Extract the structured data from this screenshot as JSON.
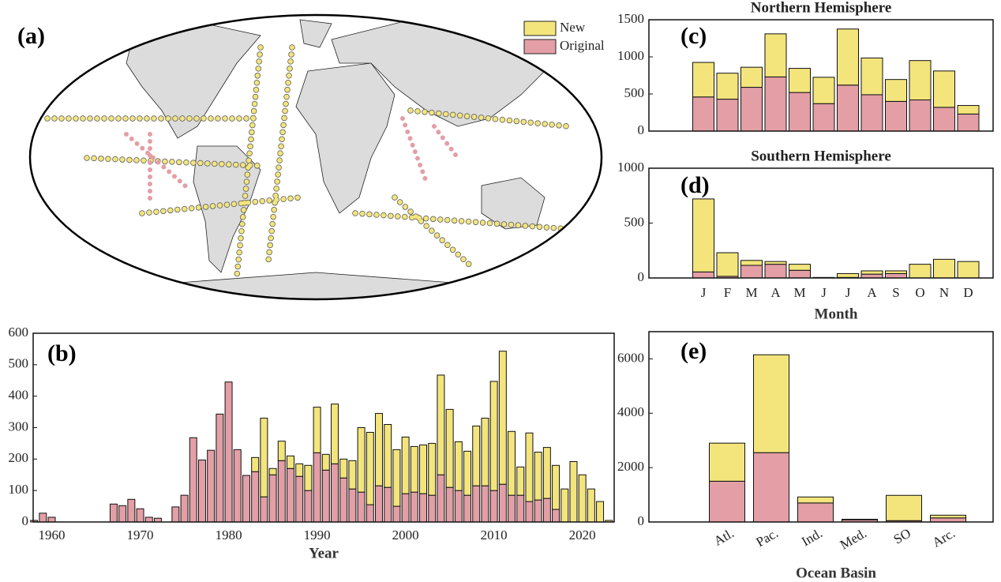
{
  "chart_data": [
    {
      "type": "map",
      "panel_label": "(a)",
      "series": [
        {
          "name": "New",
          "color": "#f3e57c"
        },
        {
          "name": "Original",
          "color": "#e39ea6"
        }
      ]
    },
    {
      "type": "bar",
      "stacked": true,
      "panel_label": "(b)",
      "x_label": "Year",
      "x": [
        1958,
        1959,
        1960,
        1961,
        1962,
        1963,
        1964,
        1965,
        1966,
        1967,
        1968,
        1969,
        1970,
        1971,
        1972,
        1973,
        1974,
        1975,
        1976,
        1977,
        1978,
        1979,
        1980,
        1981,
        1982,
        1983,
        1984,
        1985,
        1986,
        1987,
        1988,
        1989,
        1990,
        1991,
        1992,
        1993,
        1994,
        1995,
        1996,
        1997,
        1998,
        1999,
        2000,
        2001,
        2002,
        2003,
        2004,
        2005,
        2006,
        2007,
        2008,
        2009,
        2010,
        2011,
        2012,
        2013,
        2014,
        2015,
        2016,
        2017,
        2018,
        2019,
        2020,
        2021,
        2022,
        2023
      ],
      "xlim": [
        1957.9,
        2023.6
      ],
      "xticks": [
        1960,
        1970,
        1980,
        1990,
        2000,
        2010,
        2020
      ],
      "ylim": [
        0,
        600
      ],
      "yticks": [
        0,
        100,
        200,
        300,
        400,
        500,
        600
      ],
      "series": [
        {
          "color": "#e39ea6",
          "values": [
            5,
            28,
            15,
            0,
            0,
            0,
            0,
            0,
            0,
            57,
            52,
            72,
            42,
            15,
            12,
            0,
            48,
            85,
            268,
            197,
            228,
            343,
            445,
            230,
            148,
            160,
            80,
            150,
            195,
            170,
            145,
            100,
            220,
            165,
            185,
            140,
            105,
            95,
            55,
            115,
            110,
            50,
            90,
            95,
            90,
            85,
            150,
            110,
            100,
            85,
            115,
            115,
            100,
            120,
            85,
            85,
            65,
            70,
            75,
            40,
            0,
            0,
            0,
            0,
            0,
            0
          ]
        },
        {
          "color": "#f3e57c",
          "values": [
            0,
            0,
            0,
            0,
            0,
            0,
            0,
            0,
            0,
            0,
            0,
            0,
            0,
            0,
            0,
            0,
            0,
            0,
            0,
            0,
            0,
            0,
            0,
            0,
            0,
            45,
            250,
            20,
            62,
            40,
            40,
            80,
            145,
            50,
            190,
            60,
            90,
            205,
            230,
            230,
            200,
            180,
            180,
            145,
            155,
            165,
            317,
            248,
            155,
            140,
            190,
            215,
            347,
            423,
            203,
            90,
            218,
            152,
            162,
            140,
            105,
            192,
            150,
            105,
            65,
            5
          ]
        }
      ]
    },
    {
      "type": "bar",
      "stacked": true,
      "panel_label": "(c)",
      "title": "Northern Hemisphere",
      "categories": [
        null,
        null,
        null,
        null,
        null,
        null,
        null,
        null,
        null,
        null,
        null,
        null
      ],
      "ylim": [
        0,
        1500
      ],
      "yticks": [
        0,
        500,
        1000,
        1500
      ],
      "series": [
        {
          "color": "#e39ea6",
          "values": [
            460,
            430,
            590,
            730,
            520,
            370,
            620,
            490,
            400,
            420,
            320,
            230
          ]
        },
        {
          "color": "#f3e57c",
          "values": [
            465,
            350,
            270,
            580,
            325,
            355,
            755,
            495,
            295,
            530,
            490,
            115
          ]
        }
      ]
    },
    {
      "type": "bar",
      "stacked": true,
      "panel_label": "(d)",
      "title": "Southern Hemisphere",
      "x_label": "Month",
      "categories": [
        "J",
        "F",
        "M",
        "A",
        "M",
        "J",
        "J",
        "A",
        "S",
        "O",
        "N",
        "D"
      ],
      "ylim": [
        0,
        1000
      ],
      "yticks": [
        0,
        500,
        1000
      ],
      "series": [
        {
          "color": "#e39ea6",
          "values": [
            55,
            15,
            115,
            125,
            70,
            0,
            5,
            35,
            40,
            0,
            0,
            0
          ]
        },
        {
          "color": "#f3e57c",
          "values": [
            665,
            215,
            45,
            25,
            55,
            5,
            35,
            30,
            25,
            125,
            170,
            150
          ]
        }
      ]
    },
    {
      "type": "bar",
      "stacked": true,
      "panel_label": "(e)",
      "x_label": "Ocean Basin",
      "categories": [
        "Atl.",
        "Pac.",
        "Ind.",
        "Med.",
        "SO",
        "Arc."
      ],
      "ylim": [
        0,
        7000
      ],
      "yticks": [
        0,
        2000,
        4000,
        6000
      ],
      "series": [
        {
          "color": "#e39ea6",
          "values": [
            1500,
            2550,
            700,
            80,
            50,
            150
          ]
        },
        {
          "color": "#f3e57c",
          "values": [
            1400,
            3600,
            220,
            20,
            930,
            100
          ]
        }
      ]
    }
  ]
}
